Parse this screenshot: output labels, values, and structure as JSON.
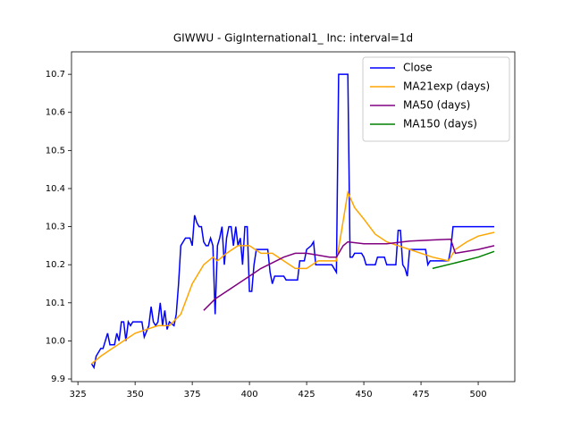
{
  "chart_data": {
    "type": "line",
    "title": "GIWWU - GigInternational1_ Inc: interval=1d",
    "xlim": [
      322.2,
      516
    ],
    "ylim": [
      9.893,
      10.759
    ],
    "xticks": [
      325,
      350,
      375,
      400,
      425,
      450,
      475,
      500
    ],
    "yticks": [
      9.9,
      {
        "value": 10,
        "label": "10.0"
      },
      10.1,
      10.2,
      10.3,
      10.4,
      10.5,
      10.6,
      10.7
    ],
    "legend": "upper right",
    "series": [
      {
        "name": "Close",
        "color": "#0000ff",
        "x": [
          331,
          332,
          333,
          335,
          336,
          338,
          339,
          341,
          342,
          343,
          344,
          345,
          346,
          347,
          348,
          349,
          353,
          354,
          356,
          357,
          358,
          359,
          360,
          361,
          362,
          363,
          364,
          365,
          367,
          368,
          369,
          370,
          371,
          372,
          374,
          375,
          376,
          377,
          378,
          379,
          380,
          381,
          382,
          383,
          384,
          385,
          386,
          387,
          388,
          389,
          390,
          391,
          392,
          393,
          394,
          395,
          396,
          397,
          398,
          399,
          400,
          401,
          402,
          403,
          408,
          409,
          410,
          411,
          415,
          416,
          421,
          422,
          424,
          425,
          427,
          428,
          429,
          436,
          437,
          438,
          439,
          443,
          444,
          445,
          446,
          449,
          450,
          451,
          455,
          456,
          459,
          460,
          464,
          465,
          466,
          467,
          468,
          469,
          470,
          477,
          478,
          479,
          487,
          488,
          489,
          507
        ],
        "values": [
          9.94,
          9.93,
          9.96,
          9.98,
          9.98,
          10.02,
          9.99,
          9.99,
          10.02,
          10.0,
          10.05,
          10.05,
          10.0,
          10.05,
          10.04,
          10.05,
          10.05,
          10.01,
          10.04,
          10.09,
          10.05,
          10.04,
          10.05,
          10.1,
          10.04,
          10.08,
          10.03,
          10.05,
          10.04,
          10.07,
          10.15,
          10.25,
          10.26,
          10.27,
          10.27,
          10.25,
          10.33,
          10.31,
          10.3,
          10.3,
          10.26,
          10.25,
          10.25,
          10.27,
          10.25,
          10.07,
          10.25,
          10.27,
          10.3,
          10.2,
          10.27,
          10.3,
          10.3,
          10.25,
          10.3,
          10.25,
          10.27,
          10.2,
          10.3,
          10.3,
          10.13,
          10.13,
          10.2,
          10.24,
          10.24,
          10.18,
          10.15,
          10.17,
          10.17,
          10.16,
          10.16,
          10.21,
          10.21,
          10.24,
          10.25,
          10.26,
          10.2,
          10.2,
          10.19,
          10.18,
          10.7,
          10.7,
          10.22,
          10.22,
          10.23,
          10.23,
          10.22,
          10.2,
          10.2,
          10.22,
          10.22,
          10.2,
          10.2,
          10.29,
          10.29,
          10.2,
          10.19,
          10.17,
          10.24,
          10.24,
          10.2,
          10.21,
          10.21,
          10.24,
          10.3,
          10.3
        ]
      },
      {
        "name": "MA21exp (days)",
        "color": "#ffa500",
        "x": [
          331,
          335,
          340,
          345,
          350,
          355,
          360,
          365,
          370,
          375,
          380,
          384,
          386,
          390,
          395,
          400,
          405,
          410,
          415,
          420,
          425,
          430,
          435,
          438,
          440,
          443,
          446,
          450,
          455,
          460,
          465,
          470,
          475,
          480,
          487,
          490,
          495,
          500,
          507
        ],
        "values": [
          9.94,
          9.96,
          9.98,
          10.0,
          10.02,
          10.03,
          10.04,
          10.04,
          10.07,
          10.15,
          10.2,
          10.22,
          10.21,
          10.23,
          10.25,
          10.25,
          10.23,
          10.23,
          10.21,
          10.19,
          10.19,
          10.21,
          10.21,
          10.21,
          10.28,
          10.39,
          10.35,
          10.32,
          10.28,
          10.26,
          10.25,
          10.24,
          10.23,
          10.22,
          10.21,
          10.24,
          10.26,
          10.275,
          10.285
        ]
      },
      {
        "name": "MA50 (days)",
        "color": "#800080",
        "x": [
          380,
          385,
          390,
          395,
          400,
          405,
          410,
          415,
          420,
          425,
          430,
          435,
          438,
          441,
          443,
          450,
          460,
          470,
          480,
          488,
          490,
          495,
          500,
          507
        ],
        "values": [
          10.08,
          10.11,
          10.13,
          10.15,
          10.17,
          10.19,
          10.205,
          10.22,
          10.23,
          10.23,
          10.225,
          10.22,
          10.22,
          10.25,
          10.26,
          10.255,
          10.255,
          10.262,
          10.265,
          10.267,
          10.23,
          10.235,
          10.24,
          10.25
        ]
      },
      {
        "name": "MA150 (days)",
        "color": "#008000",
        "x": [
          480,
          490,
          500,
          507
        ],
        "values": [
          10.19,
          10.205,
          10.22,
          10.235
        ]
      }
    ]
  }
}
